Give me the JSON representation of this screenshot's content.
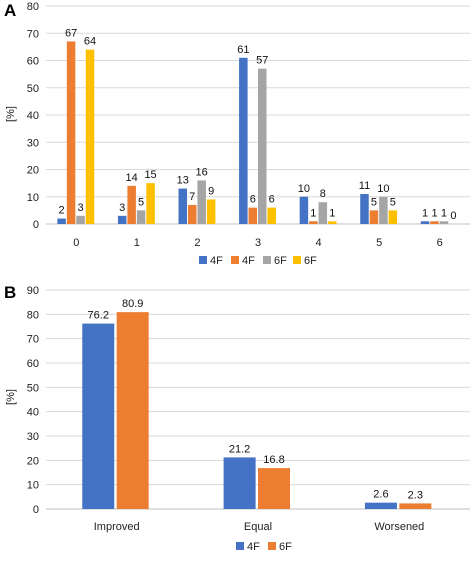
{
  "chart_data": [
    {
      "panel": "A",
      "type": "bar",
      "ylabel": "[%]",
      "ylim": [
        0,
        80
      ],
      "yticks": [
        0,
        10,
        20,
        30,
        40,
        50,
        60,
        70,
        80
      ],
      "grid": true,
      "legend_position": "bottom",
      "categories": [
        "0",
        "1",
        "2",
        "3",
        "4",
        "5",
        "6"
      ],
      "series": [
        {
          "name": "4F",
          "color": "#4472c4",
          "values": [
            2,
            3,
            13,
            61,
            10,
            11,
            1
          ]
        },
        {
          "name": "4F",
          "color": "#ed7d31",
          "values": [
            67,
            14,
            7,
            6,
            1,
            5,
            1
          ]
        },
        {
          "name": "6F",
          "color": "#a5a5a5",
          "values": [
            3,
            5,
            16,
            57,
            8,
            10,
            1
          ]
        },
        {
          "name": "6F",
          "color": "#ffc000",
          "values": [
            64,
            15,
            9,
            6,
            1,
            5,
            0
          ]
        }
      ]
    },
    {
      "panel": "B",
      "type": "bar",
      "ylabel": "[%]",
      "ylim": [
        0,
        90
      ],
      "yticks": [
        0,
        10,
        20,
        30,
        40,
        50,
        60,
        70,
        80,
        90
      ],
      "grid": true,
      "legend_position": "bottom",
      "categories": [
        "Improved",
        "Equal",
        "Worsened"
      ],
      "series": [
        {
          "name": "4F",
          "color": "#4472c4",
          "values": [
            76.2,
            21.2,
            2.6
          ]
        },
        {
          "name": "6F",
          "color": "#ed7d31",
          "values": [
            80.9,
            16.8,
            2.3
          ]
        }
      ]
    }
  ]
}
